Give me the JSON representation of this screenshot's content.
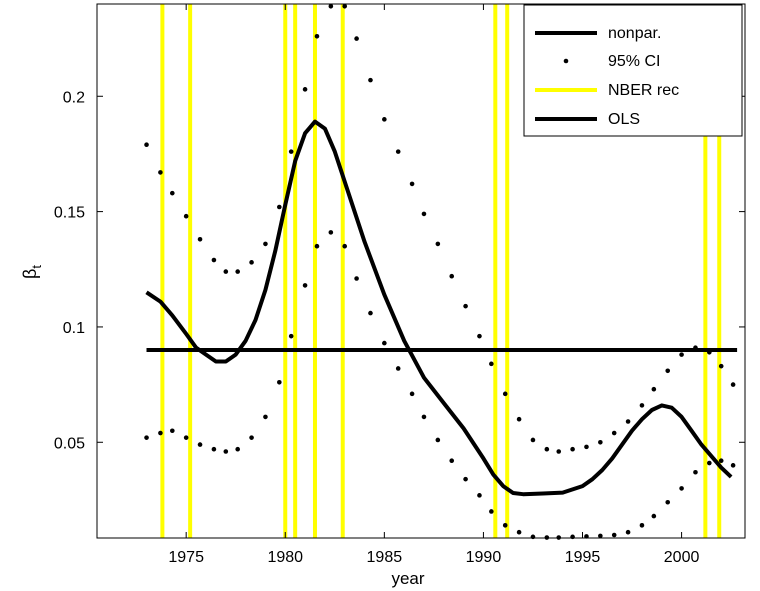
{
  "chart_data": {
    "type": "line",
    "xlabel": "year",
    "ylabel_main": "β",
    "ylabel_sub": "t",
    "xlim": [
      1970.5,
      2003.2
    ],
    "ylim": [
      0.0085,
      0.24
    ],
    "xticks": [
      1975,
      1980,
      1985,
      1990,
      1995,
      2000
    ],
    "yticks": [
      0.05,
      0.1,
      0.15,
      0.2
    ],
    "ytick_labels": [
      "0.05",
      "0.1",
      "0.15",
      "0.2"
    ],
    "legend_position": "top-right",
    "legend": [
      {
        "label": "nonpar.",
        "style": "line",
        "color": "#000000"
      },
      {
        "label": "95% CI",
        "style": "dots",
        "color": "#000000"
      },
      {
        "label": "NBER rec",
        "style": "line",
        "color": "#ffff00"
      },
      {
        "label": "OLS",
        "style": "line",
        "color": "#000000"
      }
    ],
    "series": [
      {
        "name": "nonpar.",
        "style": "line",
        "color": "#000000",
        "x": [
          1973.0,
          1973.7,
          1974.3,
          1975.0,
          1975.5,
          1976.0,
          1976.5,
          1977.0,
          1977.5,
          1978.0,
          1978.5,
          1979.0,
          1979.5,
          1980.0,
          1980.5,
          1981.0,
          1981.5,
          1982.0,
          1982.5,
          1983.0,
          1983.5,
          1984.0,
          1985.0,
          1986.0,
          1987.0,
          1988.0,
          1989.0,
          1990.0,
          1990.5,
          1991.0,
          1991.5,
          1992.0,
          1993.0,
          1994.0,
          1995.0,
          1995.5,
          1996.0,
          1996.5,
          1997.0,
          1997.5,
          1998.0,
          1998.5,
          1999.0,
          1999.5,
          2000.0,
          2000.5,
          2001.0,
          2001.5,
          2002.0,
          2002.5
        ],
        "y": [
          0.115,
          0.111,
          0.105,
          0.097,
          0.091,
          0.088,
          0.085,
          0.085,
          0.088,
          0.094,
          0.103,
          0.116,
          0.133,
          0.153,
          0.172,
          0.184,
          0.189,
          0.186,
          0.176,
          0.163,
          0.15,
          0.137,
          0.114,
          0.094,
          0.078,
          0.067,
          0.056,
          0.043,
          0.036,
          0.031,
          0.028,
          0.0275,
          0.0278,
          0.0282,
          0.031,
          0.034,
          0.038,
          0.043,
          0.049,
          0.055,
          0.06,
          0.064,
          0.066,
          0.065,
          0.061,
          0.055,
          0.049,
          0.044,
          0.039,
          0.035
        ]
      },
      {
        "name": "95% CI",
        "style": "dots",
        "color": "#000000",
        "x": [
          1973.0,
          1973.7,
          1974.3,
          1975.0,
          1975.7,
          1976.4,
          1977.0,
          1977.6,
          1978.3,
          1979.0,
          1979.7,
          1980.3,
          1981.0,
          1981.6,
          1982.3,
          1983.0,
          1983.6,
          1984.3,
          1985.0,
          1985.7,
          1986.4,
          1987.0,
          1987.7,
          1988.4,
          1989.1,
          1989.8,
          1990.4,
          1991.1,
          1991.8,
          1992.5,
          1993.2,
          1993.8,
          1994.5,
          1995.2,
          1995.9,
          1996.6,
          1997.3,
          1998.0,
          1998.6,
          1999.3,
          2000.0,
          2000.7,
          2001.4,
          2002.0,
          2002.6
        ],
        "y": [
          0.179,
          0.167,
          0.158,
          0.148,
          0.138,
          0.129,
          0.124,
          0.124,
          0.128,
          0.136,
          0.152,
          0.176,
          0.203,
          0.226,
          0.239,
          0.239,
          0.225,
          0.207,
          0.19,
          0.176,
          0.162,
          0.149,
          0.136,
          0.122,
          0.109,
          0.096,
          0.084,
          0.071,
          0.06,
          0.051,
          0.047,
          0.046,
          0.047,
          0.048,
          0.05,
          0.054,
          0.059,
          0.066,
          0.073,
          0.081,
          0.088,
          0.091,
          0.089,
          0.083,
          0.075
        ]
      },
      {
        "name": "95% CI lower",
        "style": "dots",
        "color": "#000000",
        "x": [
          1973.0,
          1973.7,
          1974.3,
          1975.0,
          1975.7,
          1976.4,
          1977.0,
          1977.6,
          1978.3,
          1979.0,
          1979.7,
          1980.3,
          1981.0,
          1981.6,
          1982.3,
          1983.0,
          1983.6,
          1984.3,
          1985.0,
          1985.7,
          1986.4,
          1987.0,
          1987.7,
          1988.4,
          1989.1,
          1989.8,
          1990.4,
          1991.1,
          1991.8,
          1992.5,
          1993.2,
          1993.8,
          1994.5,
          1995.2,
          1995.9,
          1996.6,
          1997.3,
          1998.0,
          1998.6,
          1999.3,
          2000.0,
          2000.7,
          2001.4,
          2002.0,
          2002.6
        ],
        "y": [
          0.052,
          0.054,
          0.055,
          0.052,
          0.049,
          0.047,
          0.046,
          0.047,
          0.052,
          0.061,
          0.076,
          0.096,
          0.118,
          0.135,
          0.141,
          0.135,
          0.121,
          0.106,
          0.093,
          0.082,
          0.071,
          0.061,
          0.051,
          0.042,
          0.034,
          0.027,
          0.02,
          0.014,
          0.011,
          0.009,
          0.0087,
          0.0087,
          0.009,
          0.0092,
          0.0094,
          0.0098,
          0.011,
          0.014,
          0.018,
          0.024,
          0.03,
          0.037,
          0.041,
          0.042,
          0.04
        ]
      },
      {
        "name": "OLS",
        "style": "line",
        "color": "#000000",
        "x": [
          1973.0,
          2002.8
        ],
        "y": [
          0.09,
          0.09
        ]
      }
    ],
    "recessions": [
      1973.8,
      1975.2,
      1980.0,
      1980.5,
      1981.5,
      1982.9,
      1990.6,
      1991.2,
      2001.2,
      2001.9
    ]
  }
}
